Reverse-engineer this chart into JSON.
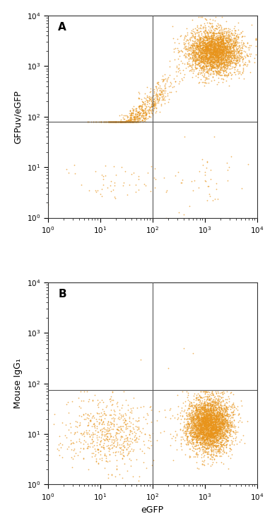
{
  "panel_A_label": "A",
  "panel_B_label": "B",
  "xlabel": "eGFP",
  "ylabel_A": "GFPuv/eGFP",
  "ylabel_B": "Mouse IgG₁",
  "xlim": [
    1,
    10000
  ],
  "ylim": [
    1,
    10000
  ],
  "dot_color": "#E8941A",
  "dot_alpha": 0.7,
  "dot_size": 1.5,
  "gate_x": 100,
  "gate_y_A": 80,
  "gate_y_B": 75,
  "gate_color": "#555555",
  "gate_linewidth": 0.8,
  "background_color": "#ffffff",
  "label_fontsize": 9,
  "axis_label_fontsize": 9,
  "panel_label_fontsize": 11,
  "seed": 42
}
